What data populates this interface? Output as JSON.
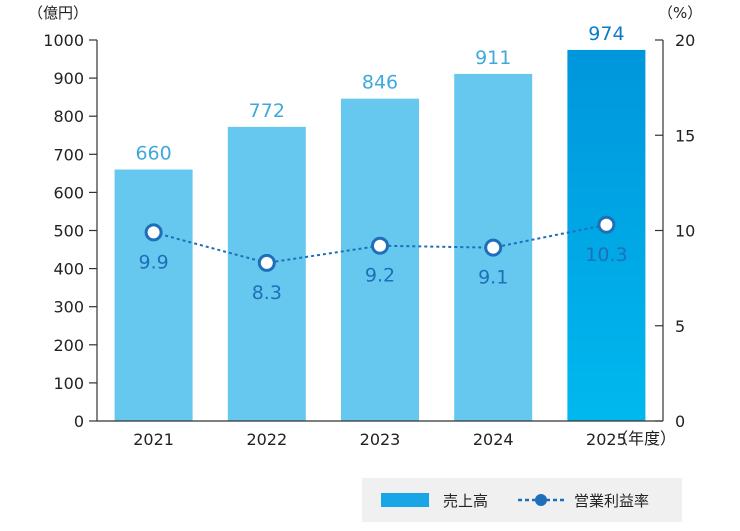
{
  "chart_data": {
    "type": "bar",
    "categories": [
      "2021",
      "2022",
      "2023",
      "2024",
      "2025"
    ],
    "series": [
      {
        "name": "売上高",
        "type": "bar",
        "axis": "left",
        "values": [
          660,
          772,
          846,
          911,
          974
        ]
      },
      {
        "name": "営業利益率",
        "type": "line",
        "axis": "right",
        "values": [
          9.9,
          8.3,
          9.2,
          9.1,
          10.3
        ]
      }
    ],
    "bar_labels": [
      "660",
      "772",
      "846",
      "911",
      "974"
    ],
    "line_labels": [
      "9.9",
      "8.3",
      "9.2",
      "9.1",
      "10.3"
    ],
    "left_axis": {
      "unit_label": "（億円）",
      "range": [
        0,
        1000
      ],
      "ticks": [
        0,
        100,
        200,
        300,
        400,
        500,
        600,
        700,
        800,
        900,
        1000
      ]
    },
    "right_axis": {
      "unit_label": "（%）",
      "range": [
        0,
        20
      ],
      "ticks": [
        0,
        5,
        10,
        15,
        20
      ]
    },
    "x_unit_label": "（年度）",
    "highlight_category": "2025",
    "grid": false,
    "legend_position": "bottom-right",
    "colors": {
      "bar": "#67c8ef",
      "bar_highlight_top": "#0096dc",
      "bar_highlight_bottom": "#00b8ee",
      "bar_label": "#3fa9dc",
      "bar_label_highlight": "#0a7cc9",
      "line": "#1f6fb8",
      "marker_fill": "#ffffff",
      "marker_stroke": "#1f6fb8",
      "axis": "#333333",
      "legend_bg": "#f0f0f0"
    }
  },
  "legend": {
    "bar_label": "売上高",
    "line_label": "営業利益率"
  }
}
